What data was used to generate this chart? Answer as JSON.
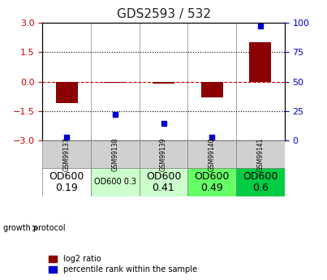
{
  "title": "GDS2593 / 532",
  "samples": [
    "GSM99137",
    "GSM99138",
    "GSM99139",
    "GSM99140",
    "GSM99141"
  ],
  "log2_ratio": [
    -1.1,
    -0.05,
    -0.1,
    -0.8,
    2.0
  ],
  "percentile_rank": [
    3,
    22,
    15,
    3,
    97
  ],
  "bar_color": "#8B0000",
  "dot_color": "#0000CD",
  "ylim_left": [
    -3,
    3
  ],
  "ylim_right": [
    0,
    100
  ],
  "yticks_left": [
    -3,
    -1.5,
    0,
    1.5,
    3
  ],
  "yticks_right": [
    0,
    25,
    50,
    75,
    100
  ],
  "hlines": [
    -1.5,
    0,
    1.5
  ],
  "growth_protocol_labels": [
    "OD600\n0.19",
    "OD600 0.3",
    "OD600\n0.41",
    "OD600\n0.49",
    "OD600\n0.6"
  ],
  "growth_protocol_colors": [
    "#ffffff",
    "#ccffcc",
    "#ccffcc",
    "#66ff66",
    "#00cc44"
  ],
  "growth_protocol_fontsizes": [
    9,
    7,
    9,
    9,
    9
  ],
  "legend_red_label": "log2 ratio",
  "legend_blue_label": "percentile rank within the sample",
  "zero_line_color": "#cc0000",
  "dotted_line_color": "#000000",
  "bg_color": "#ffffff"
}
